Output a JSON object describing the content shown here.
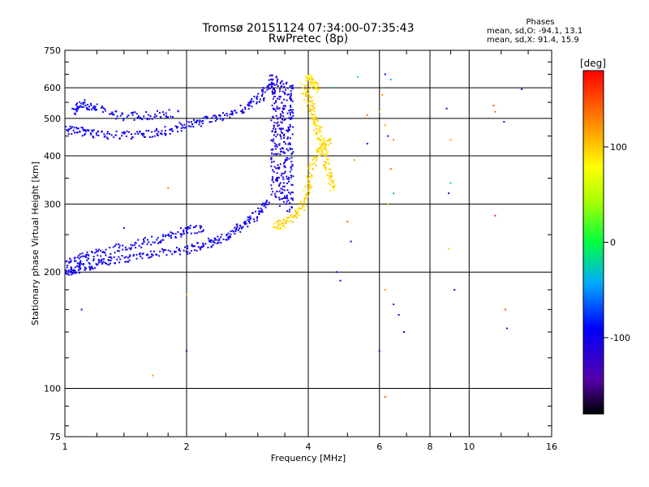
{
  "header": {
    "title_line1": "Tromsø 20151124 07:34:00-07:35:43",
    "title_line2": "RwPretec (8p)"
  },
  "stats": {
    "heading": "Phases",
    "line_o": "mean, sd,O: -94.1, 13.1",
    "line_x": "mean, sd,X:  91.4, 15.9"
  },
  "colorbar": {
    "label": "[deg]",
    "min": -180,
    "max": 180,
    "ticks": [
      {
        "value": 100,
        "label": "100"
      },
      {
        "value": 0,
        "label": "0"
      },
      {
        "value": -100,
        "label": "-100"
      }
    ]
  },
  "chart_data": {
    "type": "scatter",
    "title": "Tromsø 20151124 07:34:00-07:35:43",
    "subtitle": "RwPretec (8p)",
    "xlabel": "Frequency [MHz]",
    "ylabel": "Stationary phase Virtual Height [km]",
    "x_scale": "log",
    "y_scale": "log",
    "xlim": [
      1,
      16
    ],
    "ylim": [
      75,
      750
    ],
    "x_ticks": [
      {
        "value": 1,
        "label": "1"
      },
      {
        "value": 2,
        "label": "2"
      },
      {
        "value": 4,
        "label": "4"
      },
      {
        "value": 6,
        "label": "6"
      },
      {
        "value": 8,
        "label": "8"
      },
      {
        "value": 10,
        "label": "10"
      },
      {
        "value": 16,
        "label": "16"
      }
    ],
    "y_ticks": [
      {
        "value": 75,
        "label": "75"
      },
      {
        "value": 100,
        "label": "100"
      },
      {
        "value": 200,
        "label": "200"
      },
      {
        "value": 300,
        "label": "300"
      },
      {
        "value": 400,
        "label": "400"
      },
      {
        "value": 500,
        "label": "500"
      },
      {
        "value": 600,
        "label": "600"
      },
      {
        "value": 750,
        "label": "750"
      }
    ],
    "grid": true,
    "color_scale": "phase [deg], -180 to 180",
    "traces": [
      {
        "mode": "O",
        "phase": -100,
        "points": [
          [
            1.0,
            200
          ],
          [
            1.05,
            203
          ],
          [
            1.1,
            206
          ],
          [
            1.2,
            210
          ],
          [
            1.3,
            214
          ],
          [
            1.5,
            219
          ],
          [
            1.7,
            223
          ],
          [
            2.0,
            228
          ],
          [
            2.2,
            234
          ],
          [
            2.4,
            243
          ],
          [
            2.6,
            253
          ],
          [
            2.8,
            266
          ],
          [
            3.0,
            283
          ],
          [
            3.2,
            305
          ]
        ]
      },
      {
        "mode": "O",
        "phase": -100,
        "points": [
          [
            1.0,
            212
          ],
          [
            1.1,
            218
          ],
          [
            1.2,
            224
          ],
          [
            1.4,
            232
          ],
          [
            1.6,
            240
          ],
          [
            1.8,
            247
          ],
          [
            2.0,
            255
          ],
          [
            2.2,
            262
          ]
        ]
      },
      {
        "mode": "O",
        "phase": -100,
        "points": [
          [
            1.0,
            470
          ],
          [
            1.1,
            462
          ],
          [
            1.2,
            455
          ],
          [
            1.4,
            452
          ],
          [
            1.6,
            455
          ],
          [
            1.8,
            465
          ],
          [
            2.0,
            480
          ],
          [
            2.2,
            492
          ],
          [
            2.5,
            510
          ],
          [
            2.8,
            535
          ],
          [
            3.0,
            560
          ],
          [
            3.2,
            595
          ],
          [
            3.3,
            640
          ]
        ]
      },
      {
        "mode": "O",
        "phase": -95,
        "points": [
          [
            1.05,
            520
          ],
          [
            1.1,
            545
          ],
          [
            1.2,
            530
          ],
          [
            1.4,
            505
          ],
          [
            1.6,
            510
          ],
          [
            1.9,
            515
          ]
        ]
      },
      {
        "mode": "O",
        "phase": -110,
        "points": [
          [
            3.3,
            640
          ],
          [
            3.3,
            560
          ],
          [
            3.3,
            480
          ],
          [
            3.3,
            420
          ],
          [
            3.3,
            360
          ],
          [
            3.3,
            310
          ]
        ]
      },
      {
        "mode": "O",
        "phase": -110,
        "points": [
          [
            3.45,
            620
          ],
          [
            3.45,
            540
          ],
          [
            3.45,
            470
          ],
          [
            3.45,
            400
          ],
          [
            3.45,
            340
          ],
          [
            3.45,
            300
          ]
        ]
      },
      {
        "mode": "O",
        "phase": -100,
        "points": [
          [
            3.6,
            620
          ],
          [
            3.6,
            540
          ],
          [
            3.6,
            470
          ],
          [
            3.6,
            400
          ],
          [
            3.6,
            330
          ],
          [
            3.6,
            285
          ]
        ]
      },
      {
        "mode": "X",
        "phase": 95,
        "points": [
          [
            3.3,
            262
          ],
          [
            3.5,
            268
          ],
          [
            3.7,
            280
          ],
          [
            3.9,
            300
          ],
          [
            4.0,
            330
          ],
          [
            4.1,
            380
          ],
          [
            4.3,
            420
          ],
          [
            4.5,
            440
          ]
        ]
      },
      {
        "mode": "X",
        "phase": 95,
        "points": [
          [
            3.9,
            600
          ],
          [
            4.0,
            560
          ],
          [
            4.1,
            520
          ],
          [
            4.2,
            480
          ],
          [
            4.3,
            440
          ],
          [
            4.4,
            400
          ],
          [
            4.5,
            360
          ],
          [
            4.6,
            330
          ]
        ]
      },
      {
        "mode": "X",
        "phase": 90,
        "points": [
          [
            4.0,
            640
          ],
          [
            4.1,
            620
          ],
          [
            4.2,
            600
          ]
        ]
      }
    ],
    "scattered_points": [
      [
        6.2,
        650,
        -100
      ],
      [
        6.4,
        630,
        -40
      ],
      [
        6.1,
        575,
        120
      ],
      [
        6.0,
        520,
        110
      ],
      [
        6.2,
        480,
        120
      ],
      [
        6.3,
        450,
        -100
      ],
      [
        6.5,
        440,
        130
      ],
      [
        6.4,
        370,
        140
      ],
      [
        6.5,
        320,
        -30
      ],
      [
        6.3,
        300,
        110
      ],
      [
        6.2,
        180,
        120
      ],
      [
        6.5,
        165,
        -100
      ],
      [
        6.7,
        155,
        -90
      ],
      [
        6.9,
        140,
        -100
      ],
      [
        6.0,
        125,
        -110
      ],
      [
        6.2,
        95,
        150
      ],
      [
        5.6,
        510,
        140
      ],
      [
        5.6,
        430,
        -110
      ],
      [
        5.2,
        390,
        120
      ],
      [
        5.0,
        270,
        140
      ],
      [
        5.1,
        240,
        -100
      ],
      [
        4.7,
        200,
        -100
      ],
      [
        4.8,
        190,
        -110
      ],
      [
        8.8,
        530,
        -110
      ],
      [
        9.0,
        440,
        120
      ],
      [
        9.0,
        340,
        -30
      ],
      [
        8.9,
        320,
        -110
      ],
      [
        9.2,
        180,
        -90
      ],
      [
        8.9,
        230,
        100
      ],
      [
        11.5,
        540,
        150
      ],
      [
        11.6,
        520,
        140
      ],
      [
        12.2,
        490,
        -110
      ],
      [
        12.3,
        160,
        150
      ],
      [
        12.4,
        143,
        -110
      ],
      [
        11.6,
        280,
        170
      ],
      [
        13.5,
        595,
        -110
      ],
      [
        1.1,
        160,
        -100
      ],
      [
        1.65,
        108,
        120
      ],
      [
        2.0,
        175,
        110
      ],
      [
        2.0,
        125,
        -110
      ],
      [
        1.4,
        260,
        -100
      ],
      [
        1.8,
        330,
        130
      ],
      [
        4.6,
        600,
        -40
      ],
      [
        5.3,
        640,
        -10
      ]
    ]
  }
}
